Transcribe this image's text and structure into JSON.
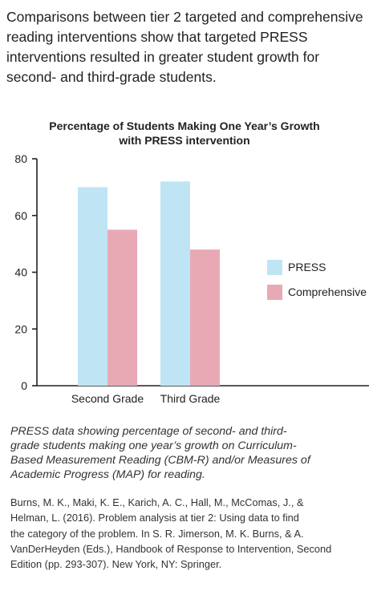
{
  "intro": {
    "lines": [
      "Comparisons between tier 2 targeted and comprehensive",
      "reading interventions show that targeted PRESS",
      "interventions resulted in greater student growth for",
      "second- and third-grade students."
    ]
  },
  "caption": {
    "lines": [
      "PRESS data showing percentage of second- and third-",
      "grade students making one year’s growth on Curriculum-",
      "Based Measurement Reading (CBM-R) and/or Measures of",
      "Academic Progress (MAP) for reading."
    ]
  },
  "reference": {
    "lines": [
      "Burns, M. K., Maki, K. E., Karich, A. C., Hall, M., McComas, J., &",
      "Helman, L. (2016). Problem analysis at tier 2: Using data to find",
      "the category of the problem. In S. R. Jimerson, M. K. Burns, & A.",
      "VanDerHeyden (Eds.), Handbook of Response to Intervention, Second",
      "Edition (pp. 293-307). New York, NY: Springer."
    ]
  },
  "chart_data": {
    "type": "bar",
    "title_lines": [
      "Percentage of Students Making One Year’s Growth",
      "with PRESS intervention"
    ],
    "categories": [
      "Second Grade",
      "Third Grade"
    ],
    "series": [
      {
        "name": "PRESS",
        "values": [
          70,
          72
        ],
        "color": "#bfe5f5"
      },
      {
        "name": "Comprehensive",
        "values": [
          55,
          48
        ],
        "color": "#e8a9b5"
      }
    ],
    "ylim": [
      0,
      80
    ],
    "yticks": [
      0,
      20,
      40,
      60,
      80
    ],
    "grid": false,
    "legend_position": "right"
  }
}
